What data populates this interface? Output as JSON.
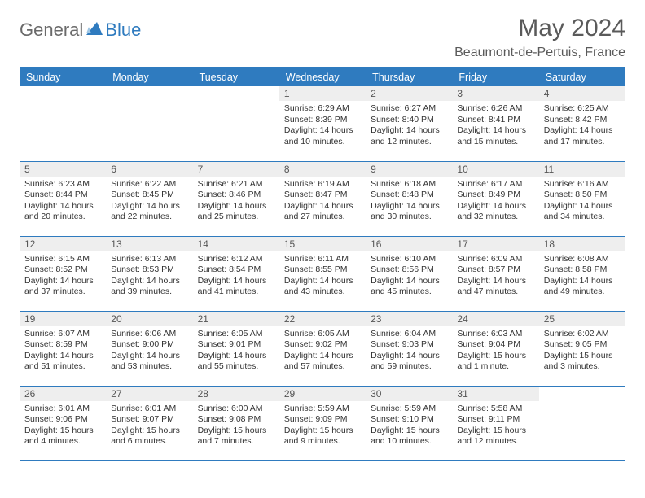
{
  "logo": {
    "general": "General",
    "blue": "Blue"
  },
  "title": "May 2024",
  "location": "Beaumont-de-Pertuis, France",
  "colors": {
    "brand_blue": "#2f7bbf",
    "header_text": "#ffffff",
    "daybar_bg": "#eeeeee",
    "text": "#333333",
    "subtitle": "#5a5a5a",
    "logo_gray": "#6a6a6a",
    "background": "#ffffff"
  },
  "weekdays": [
    "Sunday",
    "Monday",
    "Tuesday",
    "Wednesday",
    "Thursday",
    "Friday",
    "Saturday"
  ],
  "weeks": [
    [
      null,
      null,
      null,
      {
        "day": "1",
        "sunrise": "Sunrise: 6:29 AM",
        "sunset": "Sunset: 8:39 PM",
        "daylight1": "Daylight: 14 hours",
        "daylight2": "and 10 minutes."
      },
      {
        "day": "2",
        "sunrise": "Sunrise: 6:27 AM",
        "sunset": "Sunset: 8:40 PM",
        "daylight1": "Daylight: 14 hours",
        "daylight2": "and 12 minutes."
      },
      {
        "day": "3",
        "sunrise": "Sunrise: 6:26 AM",
        "sunset": "Sunset: 8:41 PM",
        "daylight1": "Daylight: 14 hours",
        "daylight2": "and 15 minutes."
      },
      {
        "day": "4",
        "sunrise": "Sunrise: 6:25 AM",
        "sunset": "Sunset: 8:42 PM",
        "daylight1": "Daylight: 14 hours",
        "daylight2": "and 17 minutes."
      }
    ],
    [
      {
        "day": "5",
        "sunrise": "Sunrise: 6:23 AM",
        "sunset": "Sunset: 8:44 PM",
        "daylight1": "Daylight: 14 hours",
        "daylight2": "and 20 minutes."
      },
      {
        "day": "6",
        "sunrise": "Sunrise: 6:22 AM",
        "sunset": "Sunset: 8:45 PM",
        "daylight1": "Daylight: 14 hours",
        "daylight2": "and 22 minutes."
      },
      {
        "day": "7",
        "sunrise": "Sunrise: 6:21 AM",
        "sunset": "Sunset: 8:46 PM",
        "daylight1": "Daylight: 14 hours",
        "daylight2": "and 25 minutes."
      },
      {
        "day": "8",
        "sunrise": "Sunrise: 6:19 AM",
        "sunset": "Sunset: 8:47 PM",
        "daylight1": "Daylight: 14 hours",
        "daylight2": "and 27 minutes."
      },
      {
        "day": "9",
        "sunrise": "Sunrise: 6:18 AM",
        "sunset": "Sunset: 8:48 PM",
        "daylight1": "Daylight: 14 hours",
        "daylight2": "and 30 minutes."
      },
      {
        "day": "10",
        "sunrise": "Sunrise: 6:17 AM",
        "sunset": "Sunset: 8:49 PM",
        "daylight1": "Daylight: 14 hours",
        "daylight2": "and 32 minutes."
      },
      {
        "day": "11",
        "sunrise": "Sunrise: 6:16 AM",
        "sunset": "Sunset: 8:50 PM",
        "daylight1": "Daylight: 14 hours",
        "daylight2": "and 34 minutes."
      }
    ],
    [
      {
        "day": "12",
        "sunrise": "Sunrise: 6:15 AM",
        "sunset": "Sunset: 8:52 PM",
        "daylight1": "Daylight: 14 hours",
        "daylight2": "and 37 minutes."
      },
      {
        "day": "13",
        "sunrise": "Sunrise: 6:13 AM",
        "sunset": "Sunset: 8:53 PM",
        "daylight1": "Daylight: 14 hours",
        "daylight2": "and 39 minutes."
      },
      {
        "day": "14",
        "sunrise": "Sunrise: 6:12 AM",
        "sunset": "Sunset: 8:54 PM",
        "daylight1": "Daylight: 14 hours",
        "daylight2": "and 41 minutes."
      },
      {
        "day": "15",
        "sunrise": "Sunrise: 6:11 AM",
        "sunset": "Sunset: 8:55 PM",
        "daylight1": "Daylight: 14 hours",
        "daylight2": "and 43 minutes."
      },
      {
        "day": "16",
        "sunrise": "Sunrise: 6:10 AM",
        "sunset": "Sunset: 8:56 PM",
        "daylight1": "Daylight: 14 hours",
        "daylight2": "and 45 minutes."
      },
      {
        "day": "17",
        "sunrise": "Sunrise: 6:09 AM",
        "sunset": "Sunset: 8:57 PM",
        "daylight1": "Daylight: 14 hours",
        "daylight2": "and 47 minutes."
      },
      {
        "day": "18",
        "sunrise": "Sunrise: 6:08 AM",
        "sunset": "Sunset: 8:58 PM",
        "daylight1": "Daylight: 14 hours",
        "daylight2": "and 49 minutes."
      }
    ],
    [
      {
        "day": "19",
        "sunrise": "Sunrise: 6:07 AM",
        "sunset": "Sunset: 8:59 PM",
        "daylight1": "Daylight: 14 hours",
        "daylight2": "and 51 minutes."
      },
      {
        "day": "20",
        "sunrise": "Sunrise: 6:06 AM",
        "sunset": "Sunset: 9:00 PM",
        "daylight1": "Daylight: 14 hours",
        "daylight2": "and 53 minutes."
      },
      {
        "day": "21",
        "sunrise": "Sunrise: 6:05 AM",
        "sunset": "Sunset: 9:01 PM",
        "daylight1": "Daylight: 14 hours",
        "daylight2": "and 55 minutes."
      },
      {
        "day": "22",
        "sunrise": "Sunrise: 6:05 AM",
        "sunset": "Sunset: 9:02 PM",
        "daylight1": "Daylight: 14 hours",
        "daylight2": "and 57 minutes."
      },
      {
        "day": "23",
        "sunrise": "Sunrise: 6:04 AM",
        "sunset": "Sunset: 9:03 PM",
        "daylight1": "Daylight: 14 hours",
        "daylight2": "and 59 minutes."
      },
      {
        "day": "24",
        "sunrise": "Sunrise: 6:03 AM",
        "sunset": "Sunset: 9:04 PM",
        "daylight1": "Daylight: 15 hours",
        "daylight2": "and 1 minute."
      },
      {
        "day": "25",
        "sunrise": "Sunrise: 6:02 AM",
        "sunset": "Sunset: 9:05 PM",
        "daylight1": "Daylight: 15 hours",
        "daylight2": "and 3 minutes."
      }
    ],
    [
      {
        "day": "26",
        "sunrise": "Sunrise: 6:01 AM",
        "sunset": "Sunset: 9:06 PM",
        "daylight1": "Daylight: 15 hours",
        "daylight2": "and 4 minutes."
      },
      {
        "day": "27",
        "sunrise": "Sunrise: 6:01 AM",
        "sunset": "Sunset: 9:07 PM",
        "daylight1": "Daylight: 15 hours",
        "daylight2": "and 6 minutes."
      },
      {
        "day": "28",
        "sunrise": "Sunrise: 6:00 AM",
        "sunset": "Sunset: 9:08 PM",
        "daylight1": "Daylight: 15 hours",
        "daylight2": "and 7 minutes."
      },
      {
        "day": "29",
        "sunrise": "Sunrise: 5:59 AM",
        "sunset": "Sunset: 9:09 PM",
        "daylight1": "Daylight: 15 hours",
        "daylight2": "and 9 minutes."
      },
      {
        "day": "30",
        "sunrise": "Sunrise: 5:59 AM",
        "sunset": "Sunset: 9:10 PM",
        "daylight1": "Daylight: 15 hours",
        "daylight2": "and 10 minutes."
      },
      {
        "day": "31",
        "sunrise": "Sunrise: 5:58 AM",
        "sunset": "Sunset: 9:11 PM",
        "daylight1": "Daylight: 15 hours",
        "daylight2": "and 12 minutes."
      },
      null
    ]
  ]
}
